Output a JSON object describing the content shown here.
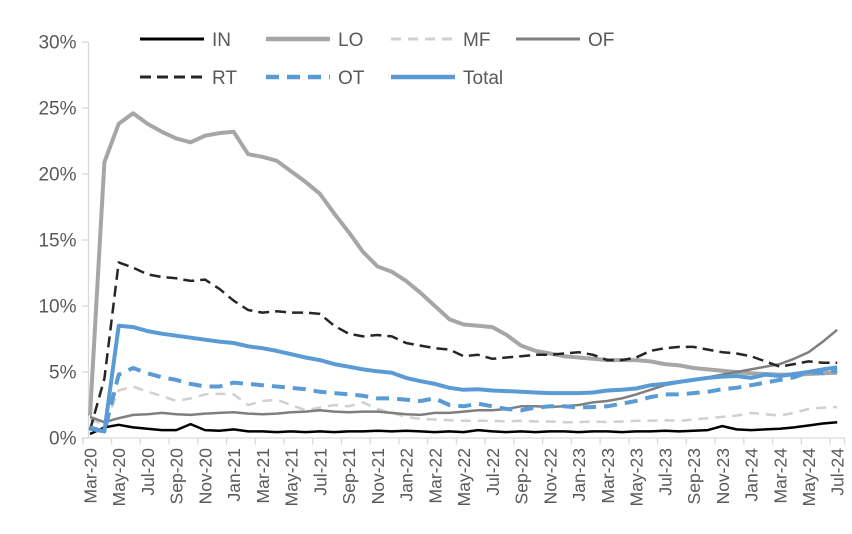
{
  "chart_data": {
    "type": "line",
    "title": "",
    "xlabel": "",
    "ylabel": "",
    "grid": false,
    "legend_position": "top",
    "x_categories": [
      "Mar-20",
      "Apr-20",
      "May-20",
      "Jun-20",
      "Jul-20",
      "Aug-20",
      "Sep-20",
      "Oct-20",
      "Nov-20",
      "Dec-20",
      "Jan-21",
      "Feb-21",
      "Mar-21",
      "Apr-21",
      "May-21",
      "Jun-21",
      "Jul-21",
      "Aug-21",
      "Sep-21",
      "Oct-21",
      "Nov-21",
      "Dec-21",
      "Jan-22",
      "Feb-22",
      "Mar-22",
      "Apr-22",
      "May-22",
      "Jun-22",
      "Jul-22",
      "Aug-22",
      "Sep-22",
      "Oct-22",
      "Nov-22",
      "Dec-22",
      "Jan-23",
      "Feb-23",
      "Mar-23",
      "Apr-23",
      "May-23",
      "Jun-23",
      "Jul-23",
      "Aug-23",
      "Sep-23",
      "Oct-23",
      "Nov-23",
      "Dec-23",
      "Jan-24",
      "Feb-24",
      "Mar-24",
      "Apr-24",
      "May-24",
      "Jun-24",
      "Jul-24"
    ],
    "x_tick_labels": [
      "Mar-20",
      "May-20",
      "Jul-20",
      "Sep-20",
      "Nov-20",
      "Jan-21",
      "Mar-21",
      "May-21",
      "Jul-21",
      "Sep-21",
      "Nov-21",
      "Jan-22",
      "Mar-22",
      "May-22",
      "Jul-22",
      "Sep-22",
      "Nov-22",
      "Jan-23",
      "Mar-23",
      "May-23",
      "Jul-23",
      "Sep-23",
      "Nov-23",
      "Jan-24",
      "Mar-24",
      "May-24",
      "Jul-24"
    ],
    "y_axis": {
      "min": 0,
      "max": 30,
      "step": 5,
      "format": "percent",
      "tick_labels": [
        "0%",
        "5%",
        "10%",
        "15%",
        "20%",
        "25%",
        "30%"
      ]
    },
    "legend_rows": [
      [
        "IN",
        "LO",
        "MF",
        "OF"
      ],
      [
        "RT",
        "OT",
        "Total"
      ]
    ],
    "series": [
      {
        "name": "IN",
        "color": "#000000",
        "style": "solid",
        "dash": "",
        "width": 2.5,
        "values": [
          0.3,
          0.8,
          1.0,
          0.8,
          0.7,
          0.6,
          0.6,
          1.05,
          0.6,
          0.55,
          0.65,
          0.5,
          0.5,
          0.45,
          0.5,
          0.45,
          0.5,
          0.45,
          0.5,
          0.5,
          0.55,
          0.5,
          0.55,
          0.5,
          0.45,
          0.5,
          0.45,
          0.6,
          0.5,
          0.45,
          0.5,
          0.45,
          0.5,
          0.5,
          0.45,
          0.5,
          0.5,
          0.45,
          0.5,
          0.5,
          0.55,
          0.5,
          0.55,
          0.6,
          0.9,
          0.65,
          0.6,
          0.65,
          0.7,
          0.8,
          0.95,
          1.1,
          1.2
        ]
      },
      {
        "name": "LO",
        "color": "#A6A6A6",
        "style": "solid",
        "dash": "",
        "width": 4,
        "values": [
          1.7,
          20.9,
          23.8,
          24.6,
          23.8,
          23.2,
          22.7,
          22.4,
          22.9,
          23.1,
          23.2,
          21.5,
          21.3,
          21.0,
          20.2,
          19.4,
          18.5,
          17.0,
          15.6,
          14.1,
          13.0,
          12.6,
          11.9,
          11.0,
          10.0,
          9.0,
          8.6,
          8.5,
          8.4,
          7.8,
          7.0,
          6.6,
          6.4,
          6.2,
          6.1,
          6.0,
          5.9,
          5.9,
          5.9,
          5.8,
          5.6,
          5.5,
          5.3,
          5.2,
          5.1,
          5.0,
          4.9,
          4.85,
          4.8,
          4.8,
          4.85,
          4.9,
          4.95
        ]
      },
      {
        "name": "MF",
        "color": "#D0D0D0",
        "style": "dashed",
        "dash": "10 7",
        "width": 2.5,
        "values": [
          1.4,
          1.0,
          3.6,
          3.9,
          3.5,
          3.2,
          2.8,
          3.0,
          3.3,
          3.35,
          3.3,
          2.5,
          2.8,
          2.9,
          2.5,
          2.1,
          2.3,
          2.5,
          2.4,
          2.7,
          2.2,
          1.9,
          1.6,
          1.45,
          1.4,
          1.35,
          1.3,
          1.3,
          1.3,
          1.25,
          1.3,
          1.25,
          1.25,
          1.2,
          1.2,
          1.25,
          1.2,
          1.25,
          1.3,
          1.3,
          1.35,
          1.3,
          1.4,
          1.5,
          1.6,
          1.7,
          1.9,
          1.8,
          1.7,
          1.9,
          2.2,
          2.3,
          2.35
        ]
      },
      {
        "name": "OF",
        "color": "#7F7F7F",
        "style": "solid",
        "dash": "",
        "width": 2.5,
        "values": [
          1.6,
          1.2,
          1.5,
          1.75,
          1.8,
          1.9,
          1.8,
          1.75,
          1.85,
          1.9,
          1.95,
          1.85,
          1.8,
          1.85,
          1.95,
          2.0,
          2.1,
          2.0,
          1.95,
          2.0,
          2.0,
          1.9,
          1.8,
          1.75,
          1.9,
          1.9,
          2.0,
          2.1,
          2.1,
          2.2,
          2.4,
          2.4,
          2.35,
          2.4,
          2.5,
          2.7,
          2.8,
          3.0,
          3.3,
          3.65,
          4.0,
          4.2,
          4.4,
          4.6,
          4.8,
          5.0,
          5.2,
          5.4,
          5.6,
          6.0,
          6.5,
          7.3,
          8.2
        ]
      },
      {
        "name": "RT",
        "color": "#262626",
        "style": "dashed",
        "dash": "11 6",
        "width": 2.5,
        "values": [
          0.6,
          4.5,
          13.3,
          12.9,
          12.4,
          12.2,
          12.1,
          11.9,
          12.0,
          11.3,
          10.4,
          9.7,
          9.5,
          9.6,
          9.5,
          9.5,
          9.4,
          8.5,
          7.9,
          7.7,
          7.8,
          7.7,
          7.2,
          7.0,
          6.8,
          6.7,
          6.2,
          6.3,
          6.0,
          6.1,
          6.2,
          6.3,
          6.3,
          6.4,
          6.5,
          6.3,
          5.9,
          5.9,
          6.1,
          6.6,
          6.8,
          6.9,
          6.9,
          6.7,
          6.5,
          6.4,
          6.2,
          5.8,
          5.4,
          5.6,
          5.8,
          5.7,
          5.7
        ]
      },
      {
        "name": "OT",
        "color": "#5B9BD5",
        "style": "dashed",
        "dash": "13 8",
        "width": 4,
        "values": [
          0.7,
          0.5,
          4.8,
          5.3,
          4.9,
          4.6,
          4.4,
          4.1,
          3.9,
          3.9,
          4.2,
          4.1,
          4.0,
          3.9,
          3.8,
          3.7,
          3.5,
          3.4,
          3.3,
          3.2,
          3.0,
          3.0,
          2.9,
          2.8,
          3.0,
          2.5,
          2.4,
          2.6,
          2.4,
          2.2,
          2.1,
          2.3,
          2.4,
          2.4,
          2.3,
          2.35,
          2.4,
          2.6,
          2.8,
          3.1,
          3.3,
          3.3,
          3.4,
          3.5,
          3.7,
          3.8,
          4.0,
          4.2,
          4.4,
          4.6,
          5.0,
          4.9,
          5.1
        ]
      },
      {
        "name": "Total",
        "color": "#5B9BD5",
        "style": "solid",
        "dash": "",
        "width": 4,
        "values": [
          0.8,
          0.5,
          8.5,
          8.4,
          8.1,
          7.9,
          7.75,
          7.6,
          7.45,
          7.3,
          7.2,
          6.95,
          6.8,
          6.6,
          6.35,
          6.1,
          5.9,
          5.6,
          5.4,
          5.2,
          5.05,
          4.95,
          4.55,
          4.3,
          4.1,
          3.8,
          3.65,
          3.7,
          3.6,
          3.55,
          3.5,
          3.45,
          3.4,
          3.4,
          3.4,
          3.45,
          3.6,
          3.65,
          3.75,
          4.0,
          4.1,
          4.25,
          4.4,
          4.55,
          4.65,
          4.7,
          4.55,
          4.8,
          4.7,
          4.85,
          5.0,
          5.2,
          5.35
        ]
      }
    ]
  },
  "colors": {
    "axis_text": "#595959",
    "axis_line": "#D9D9D9",
    "background": "#FFFFFF"
  }
}
